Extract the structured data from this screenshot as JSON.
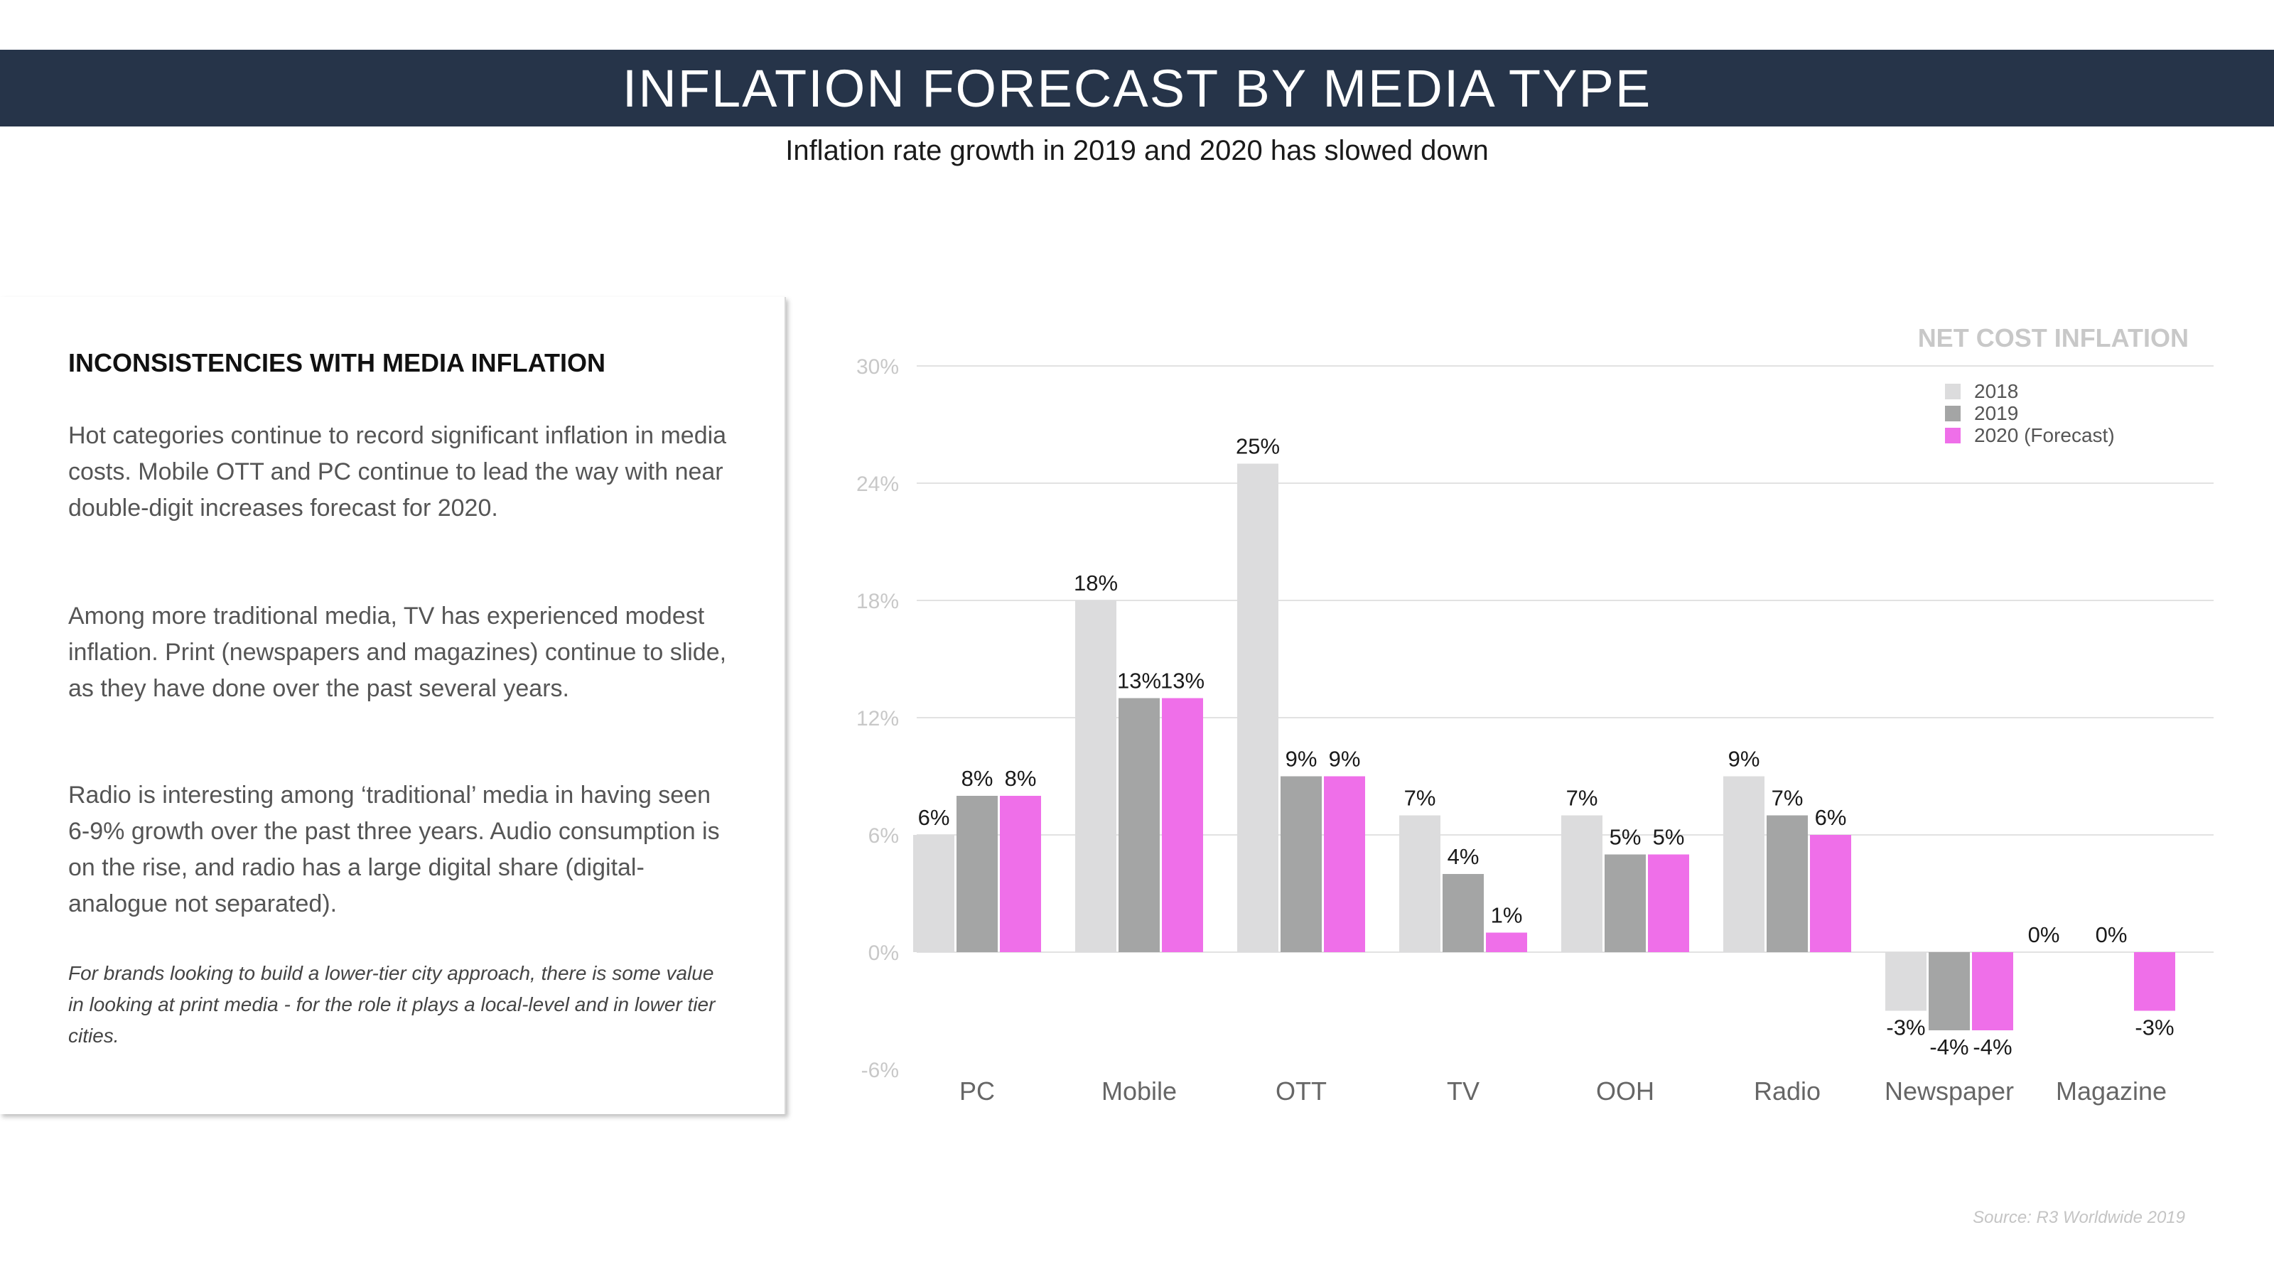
{
  "header": {
    "title": "INFLATION FORECAST BY MEDIA TYPE",
    "subtitle": "Inflation rate growth in 2019 and 2020 has slowed down"
  },
  "panel": {
    "heading": "INCONSISTENCIES WITH MEDIA INFLATION",
    "para1": "Hot categories continue to record significant inflation in media costs. Mobile OTT and PC continue to lead the way with near double-digit increases forecast for 2020.",
    "para2": "Among more traditional media, TV has experienced modest inflation. Print (newspapers and magazines) continue to slide, as they have done over the past several years.",
    "para3": "Radio is interesting among ‘traditional’ media in having seen 6-9% growth over the past three years. Audio consumption is on the rise, and radio has a large digital share (digital-analogue not separated).",
    "note": "For brands looking to build a lower-tier city approach, there is some value in looking at print media - for the role it plays a local-level and in lower tier cities."
  },
  "source": "Source: R3 Worldwide 2019",
  "colors": {
    "title_bar": "#263449",
    "s2018": "#dcdcdd",
    "s2019": "#a4a5a5",
    "s2020": "#ef6fe9",
    "grid": "#e2e2e2"
  },
  "chart_data": {
    "type": "bar",
    "title": "NET COST INFLATION",
    "categories": [
      "PC",
      "Mobile",
      "OTT",
      "TV",
      "OOH",
      "Radio",
      "Newspaper",
      "Magazine"
    ],
    "series": [
      {
        "name": "2018",
        "values": [
          6,
          18,
          25,
          7,
          7,
          9,
          -3,
          null
        ],
        "labels": [
          "6%",
          "18%",
          "25%",
          "7%",
          "7%",
          "9%",
          "-3%",
          ""
        ]
      },
      {
        "name": "2019",
        "values": [
          8,
          13,
          9,
          4,
          5,
          7,
          -4,
          0
        ],
        "labels": [
          "8%",
          "13%",
          "9%",
          "4%",
          "5%",
          "7%",
          "-4%",
          "0%"
        ]
      },
      {
        "name": "2020 (Forecast)",
        "values": [
          8,
          13,
          9,
          1,
          5,
          6,
          -4,
          -3
        ],
        "labels": [
          "8%",
          "13%",
          "9%",
          "1%",
          "5%",
          "6%",
          "-4%",
          "-3%"
        ]
      }
    ],
    "extra_labels": [
      {
        "category": "Magazine",
        "text": "0%"
      }
    ],
    "yticks": [
      "-6%",
      "0%",
      "6%",
      "12%",
      "18%",
      "24%",
      "30%"
    ],
    "ytick_values": [
      -6,
      0,
      6,
      12,
      18,
      24,
      30
    ],
    "ylim": [
      -6,
      30
    ],
    "grid": true,
    "legend": "top-right"
  }
}
